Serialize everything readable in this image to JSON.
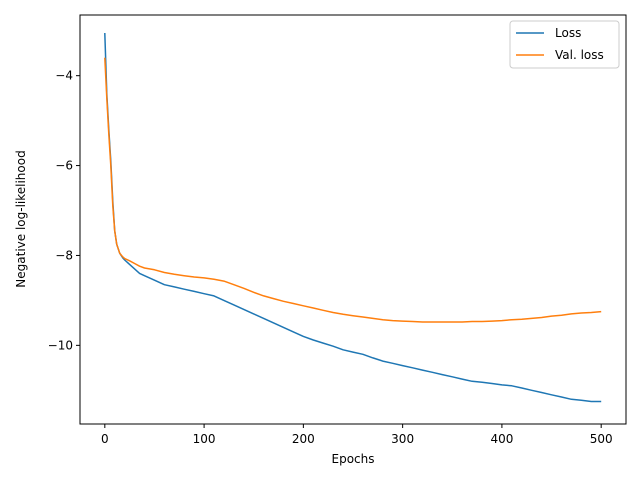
{
  "chart_data": {
    "type": "line",
    "title": "",
    "xlabel": "Epochs",
    "ylabel": "Negative log-likelihood",
    "xlim": [
      -25,
      525
    ],
    "ylim": [
      -11.75,
      -2.65
    ],
    "xticks": [
      0,
      100,
      200,
      300,
      400,
      500
    ],
    "yticks": [
      -10,
      -8,
      -6,
      -4
    ],
    "xtick_labels": [
      "0",
      "100",
      "200",
      "300",
      "400",
      "500"
    ],
    "ytick_labels": [
      "−10",
      "−8",
      "−6",
      "−4"
    ],
    "grid": false,
    "legend_position": "top-right",
    "series": [
      {
        "name": "Loss",
        "color": "#1f77b4",
        "x": [
          0,
          2,
          4,
          6,
          8,
          10,
          12,
          15,
          18,
          20,
          25,
          30,
          35,
          40,
          45,
          50,
          60,
          70,
          80,
          90,
          100,
          110,
          120,
          130,
          140,
          150,
          160,
          170,
          180,
          190,
          200,
          210,
          220,
          230,
          240,
          250,
          260,
          270,
          280,
          290,
          300,
          310,
          320,
          330,
          340,
          350,
          360,
          370,
          380,
          390,
          400,
          410,
          420,
          430,
          440,
          450,
          460,
          470,
          480,
          490,
          500
        ],
        "y": [
          -3.05,
          -4.4,
          -5.2,
          -5.9,
          -6.8,
          -7.45,
          -7.75,
          -7.95,
          -8.05,
          -8.1,
          -8.2,
          -8.3,
          -8.4,
          -8.45,
          -8.5,
          -8.55,
          -8.65,
          -8.7,
          -8.75,
          -8.8,
          -8.85,
          -8.9,
          -9.0,
          -9.1,
          -9.2,
          -9.3,
          -9.4,
          -9.5,
          -9.6,
          -9.7,
          -9.8,
          -9.88,
          -9.95,
          -10.02,
          -10.1,
          -10.15,
          -10.2,
          -10.28,
          -10.35,
          -10.4,
          -10.45,
          -10.5,
          -10.55,
          -10.6,
          -10.65,
          -10.7,
          -10.75,
          -10.8,
          -10.82,
          -10.85,
          -10.88,
          -10.9,
          -10.95,
          -11.0,
          -11.05,
          -11.1,
          -11.15,
          -11.2,
          -11.22,
          -11.25,
          -11.25
        ]
      },
      {
        "name": "Val. loss",
        "color": "#ff7f0e",
        "x": [
          0,
          2,
          4,
          6,
          8,
          10,
          12,
          15,
          18,
          20,
          25,
          30,
          35,
          40,
          45,
          50,
          60,
          70,
          80,
          90,
          100,
          110,
          120,
          130,
          140,
          150,
          160,
          170,
          180,
          190,
          200,
          210,
          220,
          230,
          240,
          250,
          260,
          270,
          280,
          290,
          300,
          310,
          320,
          330,
          340,
          350,
          360,
          370,
          380,
          390,
          400,
          410,
          420,
          430,
          440,
          450,
          460,
          470,
          480,
          490,
          500
        ],
        "y": [
          -3.6,
          -4.5,
          -5.3,
          -6.0,
          -6.9,
          -7.45,
          -7.75,
          -7.95,
          -8.03,
          -8.07,
          -8.12,
          -8.18,
          -8.24,
          -8.28,
          -8.3,
          -8.32,
          -8.38,
          -8.42,
          -8.45,
          -8.48,
          -8.5,
          -8.53,
          -8.57,
          -8.65,
          -8.73,
          -8.82,
          -8.9,
          -8.96,
          -9.02,
          -9.07,
          -9.12,
          -9.17,
          -9.22,
          -9.27,
          -9.31,
          -9.34,
          -9.37,
          -9.4,
          -9.43,
          -9.45,
          -9.46,
          -9.47,
          -9.48,
          -9.48,
          -9.48,
          -9.48,
          -9.48,
          -9.47,
          -9.47,
          -9.46,
          -9.45,
          -9.43,
          -9.42,
          -9.4,
          -9.38,
          -9.35,
          -9.33,
          -9.3,
          -9.28,
          -9.27,
          -9.25
        ]
      }
    ]
  }
}
